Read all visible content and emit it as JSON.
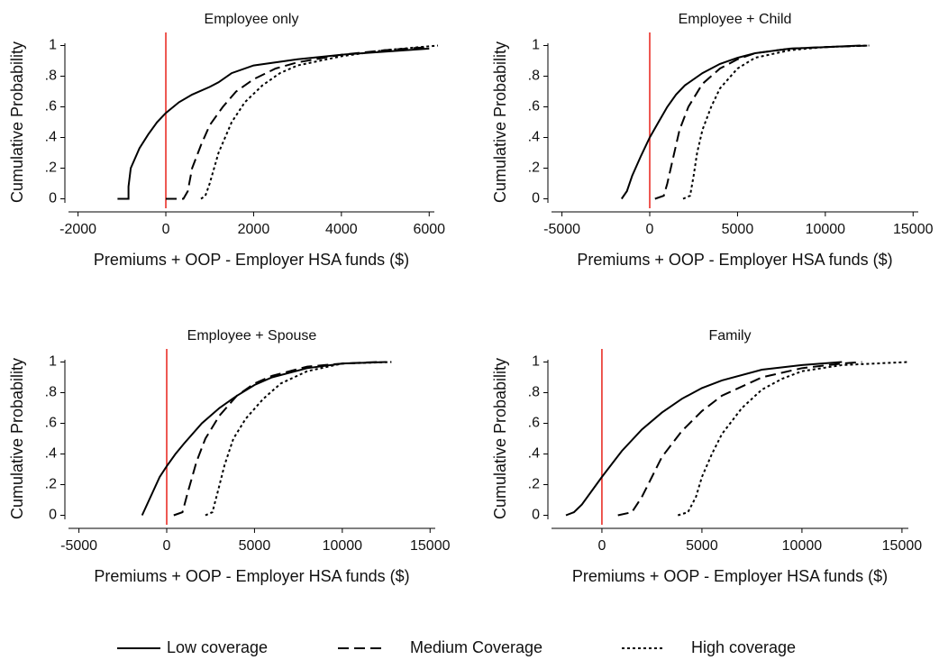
{
  "chart_data": [
    {
      "type": "line",
      "title": "Employee only",
      "xlabel": "Premiums + OOP - Employer HSA funds ($)",
      "ylabel": "Cumulative Probability",
      "xlim": [
        -2300,
        6200
      ],
      "ylim": [
        -0.05,
        1.05
      ],
      "xticks": [
        -2000,
        0,
        2000,
        4000,
        6000
      ],
      "yticks": [
        0,
        {
          "value": 0.2,
          "label": ".2"
        },
        {
          "value": 0.4,
          "label": ".4"
        },
        {
          "value": 0.6,
          "label": ".6"
        },
        {
          "value": 0.8,
          "label": ".8"
        },
        1
      ],
      "reference_line": {
        "x": 0,
        "color": "#e8211a"
      },
      "series": [
        {
          "x": [
            -1100,
            -850,
            -850,
            -800,
            -600,
            -400,
            -200,
            0,
            300,
            600,
            1000,
            1200,
            1500,
            2000,
            3000,
            4000,
            5000,
            6000
          ],
          "values": [
            0,
            0,
            0.08,
            0.2,
            0.33,
            0.42,
            0.5,
            0.56,
            0.63,
            0.68,
            0.73,
            0.76,
            0.82,
            0.87,
            0.91,
            0.94,
            0.96,
            0.98
          ]
        },
        {
          "x": [
            0,
            400,
            500,
            600,
            800,
            1000,
            1300,
            1600,
            2000,
            2500,
            3000,
            4000,
            5000,
            6000
          ],
          "values": [
            0,
            0,
            0.05,
            0.2,
            0.35,
            0.48,
            0.6,
            0.7,
            0.78,
            0.85,
            0.89,
            0.94,
            0.97,
            0.99
          ]
        },
        {
          "x": [
            800,
            900,
            1000,
            1200,
            1500,
            1800,
            2200,
            2600,
            3000,
            4000,
            5000,
            6200
          ],
          "values": [
            0,
            0.02,
            0.1,
            0.3,
            0.5,
            0.63,
            0.74,
            0.82,
            0.87,
            0.93,
            0.97,
            1
          ]
        }
      ]
    },
    {
      "type": "line",
      "title": "Employee + Child",
      "xlabel": "Premiums + OOP - Employer HSA funds ($)",
      "ylabel": "Cumulative Probability",
      "xlim": [
        -5800,
        15500
      ],
      "ylim": [
        -0.05,
        1.05
      ],
      "xticks": [
        -5000,
        0,
        5000,
        10000,
        15000
      ],
      "yticks": [
        0,
        {
          "value": 0.2,
          "label": ".2"
        },
        {
          "value": 0.4,
          "label": ".4"
        },
        {
          "value": 0.6,
          "label": ".6"
        },
        {
          "value": 0.8,
          "label": ".8"
        },
        1
      ],
      "reference_line": {
        "x": 0,
        "color": "#e8211a"
      },
      "series": [
        {
          "x": [
            -1600,
            -1300,
            -1000,
            -500,
            0,
            500,
            1000,
            1500,
            2000,
            3000,
            4000,
            5000,
            6000,
            8000,
            10000,
            12000
          ],
          "values": [
            0,
            0.05,
            0.15,
            0.28,
            0.4,
            0.5,
            0.6,
            0.68,
            0.74,
            0.82,
            0.88,
            0.92,
            0.95,
            0.98,
            0.99,
            1
          ]
        },
        {
          "x": [
            300,
            800,
            1000,
            1300,
            1700,
            2200,
            3000,
            4000,
            5000,
            6000,
            8000,
            10000,
            12500
          ],
          "values": [
            0,
            0.02,
            0.1,
            0.25,
            0.45,
            0.6,
            0.75,
            0.85,
            0.91,
            0.95,
            0.98,
            0.99,
            1
          ]
        },
        {
          "x": [
            1900,
            2300,
            2500,
            2700,
            3000,
            3500,
            4000,
            5000,
            6000,
            8000,
            10000,
            12500
          ],
          "values": [
            0,
            0.02,
            0.15,
            0.3,
            0.45,
            0.6,
            0.72,
            0.85,
            0.92,
            0.97,
            0.99,
            1
          ]
        }
      ]
    },
    {
      "type": "line",
      "title": "Employee + Spouse",
      "xlabel": "Premiums + OOP - Employer HSA funds ($)",
      "ylabel": "Cumulative Probability",
      "xlim": [
        -5800,
        15500
      ],
      "ylim": [
        -0.05,
        1.05
      ],
      "xticks": [
        -5000,
        0,
        5000,
        10000,
        15000
      ],
      "yticks": [
        0,
        {
          "value": 0.2,
          "label": ".2"
        },
        {
          "value": 0.4,
          "label": ".4"
        },
        {
          "value": 0.6,
          "label": ".6"
        },
        {
          "value": 0.8,
          "label": ".8"
        },
        1
      ],
      "reference_line": {
        "x": 0,
        "color": "#e8211a"
      },
      "series": [
        {
          "x": [
            -1400,
            -1200,
            -800,
            -400,
            0,
            500,
            1000,
            2000,
            3000,
            4000,
            5000,
            6000,
            8000,
            10000,
            12500
          ],
          "values": [
            0,
            0.05,
            0.15,
            0.25,
            0.32,
            0.4,
            0.47,
            0.6,
            0.7,
            0.78,
            0.85,
            0.9,
            0.96,
            0.99,
            1
          ]
        },
        {
          "x": [
            400,
            900,
            1200,
            1700,
            2200,
            3000,
            4000,
            5000,
            6000,
            8000,
            10000,
            12000
          ],
          "values": [
            0,
            0.02,
            0.15,
            0.35,
            0.5,
            0.65,
            0.78,
            0.86,
            0.91,
            0.97,
            0.99,
            1
          ]
        },
        {
          "x": [
            2200,
            2600,
            2900,
            3300,
            3800,
            4500,
            5500,
            6500,
            8000,
            10000,
            12800
          ],
          "values": [
            0,
            0.02,
            0.15,
            0.33,
            0.5,
            0.63,
            0.76,
            0.86,
            0.94,
            0.99,
            1
          ]
        }
      ]
    },
    {
      "type": "line",
      "title": "Family",
      "xlabel": "Premiums + OOP - Employer HSA funds ($)",
      "ylabel": "Cumulative Probability",
      "xlim": [
        -2700,
        15500
      ],
      "ylim": [
        -0.05,
        1.05
      ],
      "xticks": [
        0,
        5000,
        10000,
        15000
      ],
      "yticks": [
        0,
        {
          "value": 0.2,
          "label": ".2"
        },
        {
          "value": 0.4,
          "label": ".4"
        },
        {
          "value": 0.6,
          "label": ".6"
        },
        {
          "value": 0.8,
          "label": ".8"
        },
        1
      ],
      "reference_line": {
        "x": 0,
        "color": "#e8211a"
      },
      "series": [
        {
          "x": [
            -1800,
            -1400,
            -1000,
            0,
            1000,
            2000,
            3000,
            4000,
            5000,
            6000,
            8000,
            10000,
            12000
          ],
          "values": [
            0,
            0.02,
            0.07,
            0.25,
            0.42,
            0.56,
            0.67,
            0.76,
            0.83,
            0.88,
            0.95,
            0.98,
            1
          ]
        },
        {
          "x": [
            800,
            1500,
            2000,
            2500,
            3000,
            4000,
            5000,
            6000,
            8000,
            10000,
            12000,
            13000
          ],
          "values": [
            0,
            0.02,
            0.12,
            0.25,
            0.38,
            0.55,
            0.68,
            0.78,
            0.9,
            0.96,
            0.99,
            1
          ]
        },
        {
          "x": [
            3800,
            4300,
            4700,
            5000,
            5500,
            6000,
            7000,
            8000,
            9000,
            10000,
            12000,
            15300
          ],
          "values": [
            0,
            0.02,
            0.12,
            0.25,
            0.4,
            0.53,
            0.7,
            0.82,
            0.89,
            0.94,
            0.98,
            1
          ]
        }
      ]
    }
  ],
  "legend": [
    {
      "name": "Low coverage",
      "dash": "solid",
      "color": "#000000"
    },
    {
      "name": "Medium Coverage",
      "dash": "dashed",
      "color": "#000000"
    },
    {
      "name": "High coverage",
      "dash": "dotted",
      "color": "#000000"
    }
  ]
}
